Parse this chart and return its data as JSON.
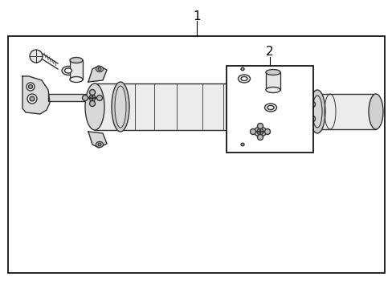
{
  "bg_color": "#ffffff",
  "border_color": "#000000",
  "line_color": "#333333",
  "label1": "1",
  "label2": "2",
  "figsize": [
    4.89,
    3.6
  ],
  "dpi": 100
}
